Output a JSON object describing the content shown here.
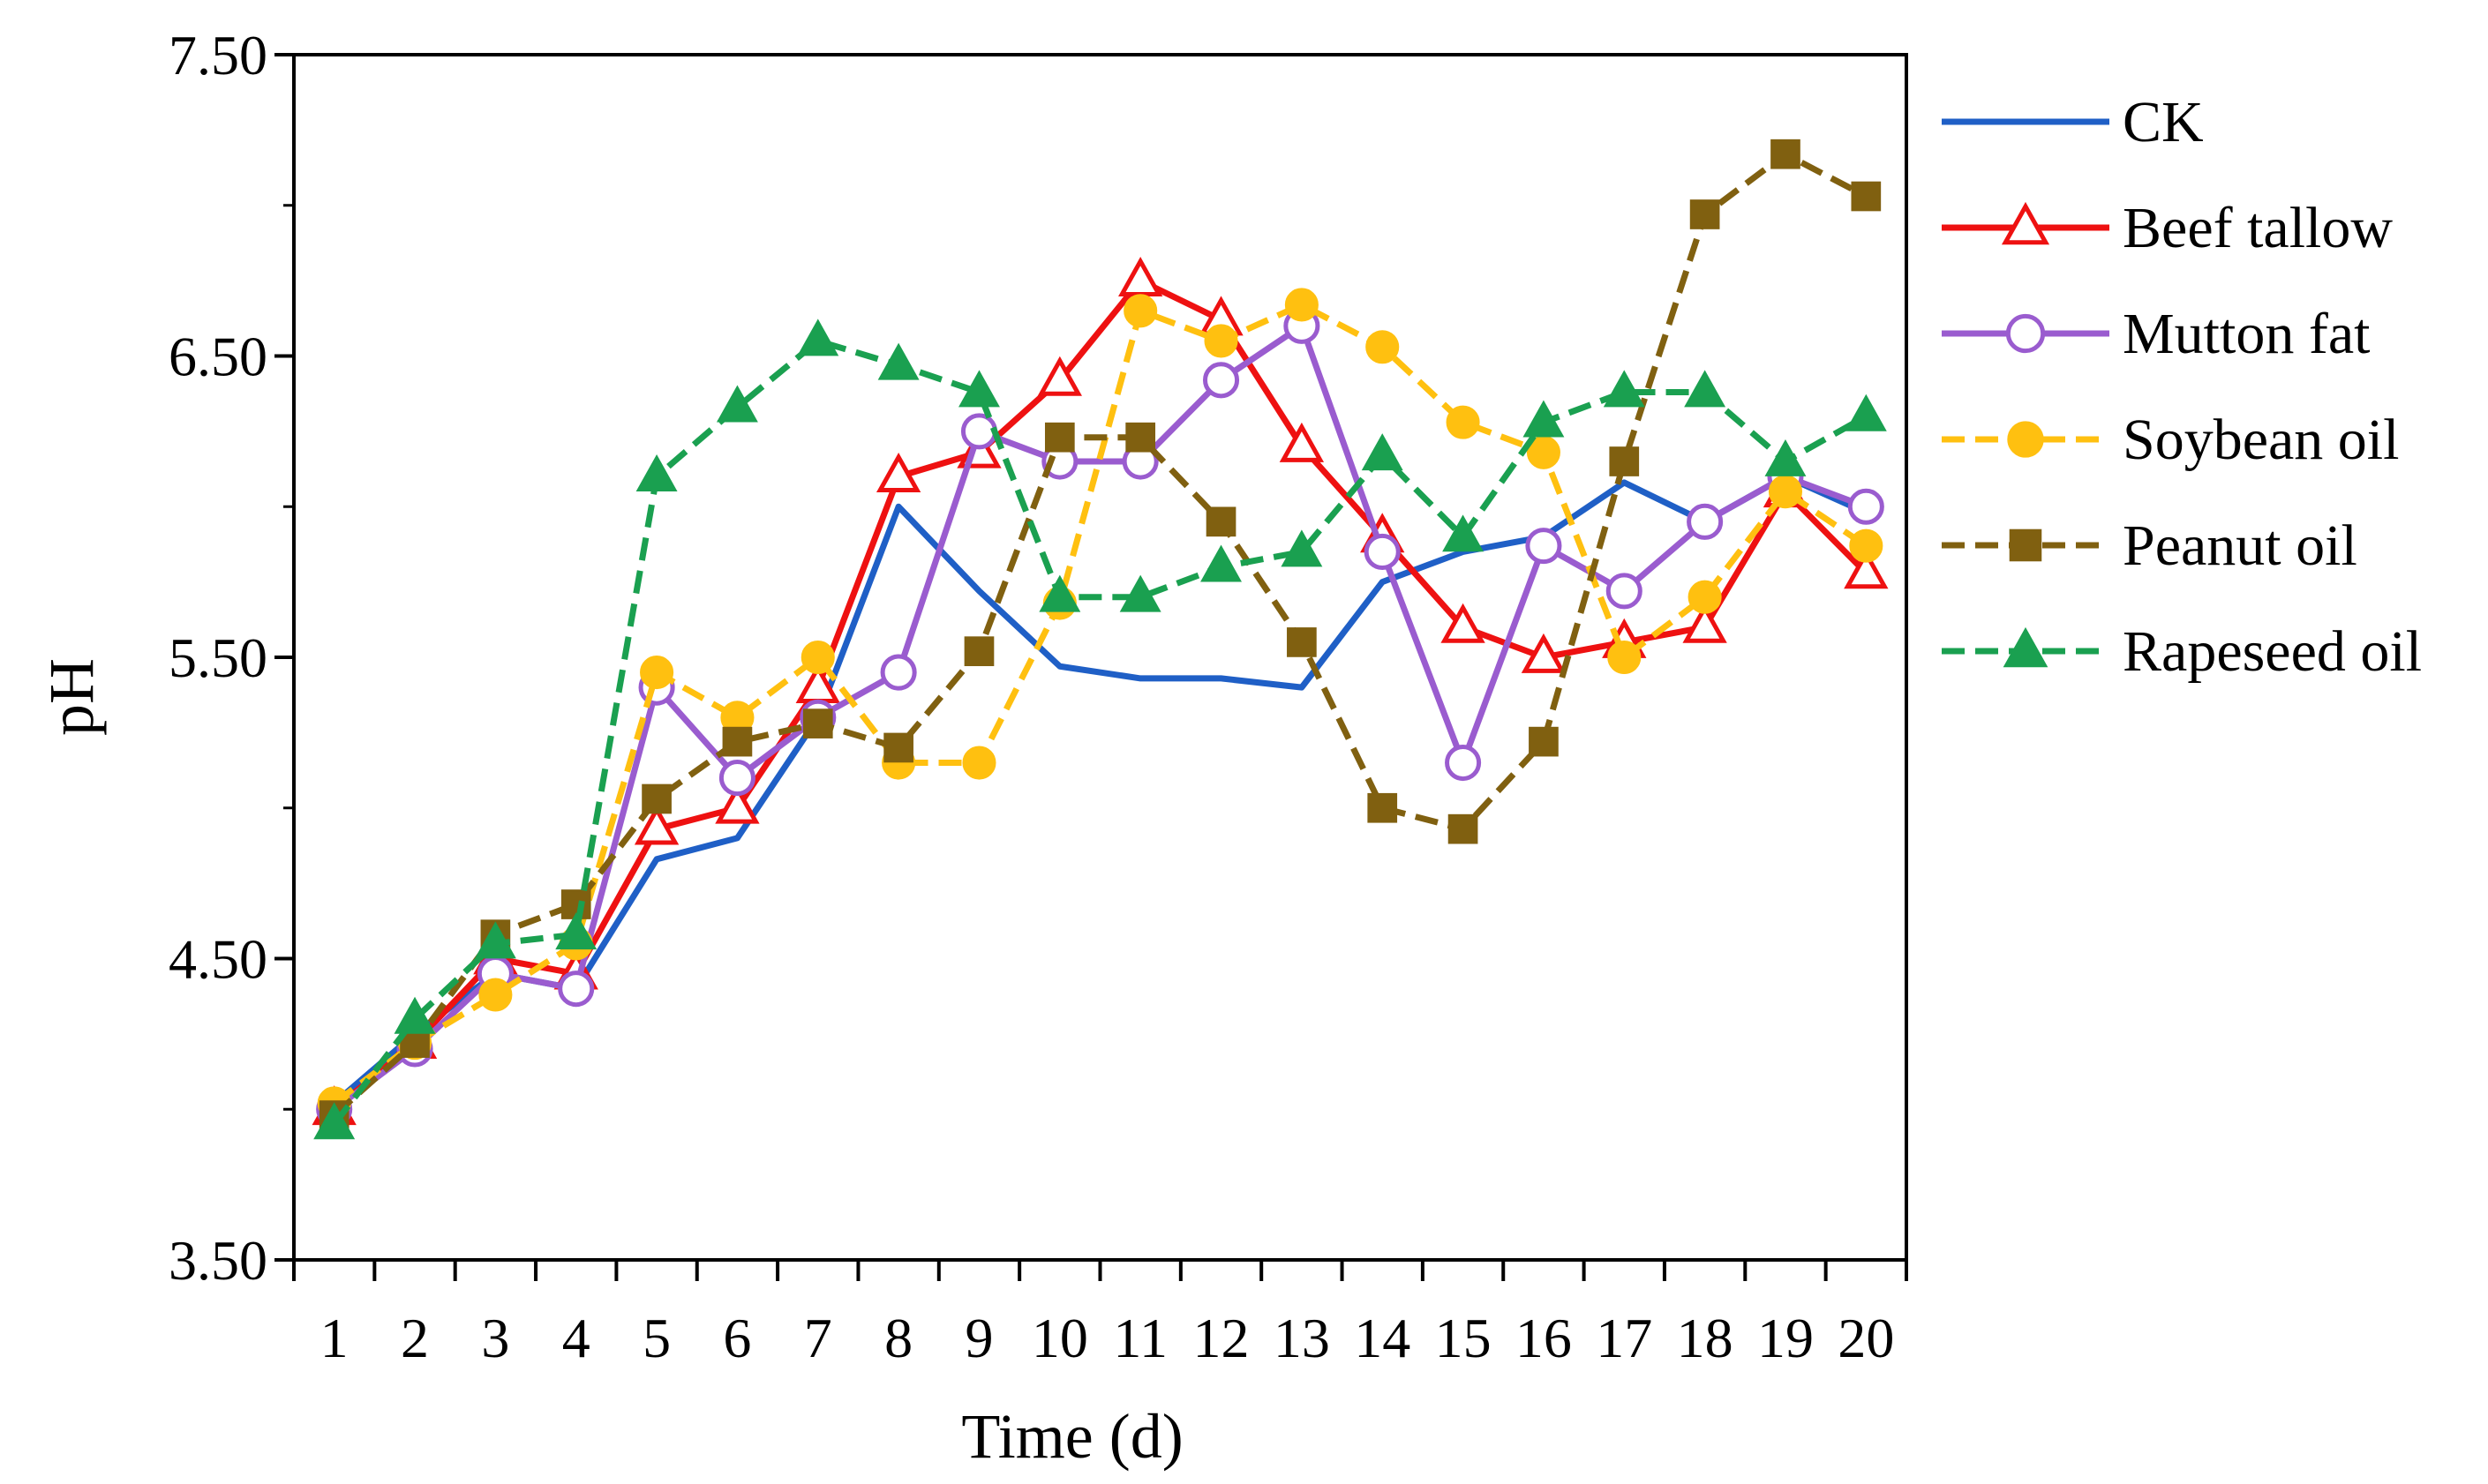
{
  "chart_data": {
    "type": "line",
    "title": "",
    "xlabel": "Time (d)",
    "ylabel": "pH",
    "xlim": [
      0.5,
      20.5
    ],
    "ylim": [
      3.5,
      7.5
    ],
    "x": [
      1,
      2,
      3,
      4,
      5,
      6,
      7,
      8,
      9,
      10,
      11,
      12,
      13,
      14,
      15,
      16,
      17,
      18,
      19,
      20
    ],
    "x_tick_labels": [
      "1",
      "2",
      "3",
      "4",
      "5",
      "6",
      "7",
      "8",
      "9",
      "10",
      "11",
      "12",
      "13",
      "14",
      "15",
      "16",
      "17",
      "18",
      "19",
      "20"
    ],
    "y_ticks": [
      3.5,
      4.5,
      5.5,
      6.5,
      7.5
    ],
    "y_tick_labels": [
      "3.50",
      "4.50",
      "5.50",
      "6.50",
      "7.50"
    ],
    "grid": false,
    "legend_position": "right",
    "series": [
      {
        "name": "CK",
        "color": "#1f5fc6",
        "marker": "none",
        "dash": "solid",
        "values": [
          4.02,
          4.25,
          4.45,
          4.4,
          4.83,
          4.9,
          5.3,
          6.0,
          5.72,
          5.47,
          5.43,
          5.43,
          5.4,
          5.75,
          5.85,
          5.9,
          6.08,
          5.95,
          6.1,
          5.98
        ]
      },
      {
        "name": "Beef tallow",
        "color": "#ee1111",
        "marker": "triangle-open",
        "dash": "solid",
        "values": [
          4.0,
          4.22,
          4.5,
          4.45,
          4.93,
          5.0,
          5.4,
          6.1,
          6.18,
          6.42,
          6.75,
          6.62,
          6.2,
          5.9,
          5.6,
          5.5,
          5.55,
          5.6,
          6.05,
          5.78
        ]
      },
      {
        "name": "Mutton fat",
        "color": "#9a5ccf",
        "marker": "circle-open",
        "dash": "solid",
        "values": [
          4.0,
          4.2,
          4.45,
          4.4,
          5.4,
          5.1,
          5.3,
          5.45,
          6.25,
          6.15,
          6.15,
          6.42,
          6.6,
          5.85,
          5.15,
          5.87,
          5.72,
          5.95,
          6.1,
          6.0
        ]
      },
      {
        "name": "Soybean oil",
        "color": "#ffc010",
        "marker": "circle-filled",
        "dash": "dashed",
        "values": [
          4.02,
          4.22,
          4.38,
          4.55,
          5.45,
          5.3,
          5.5,
          5.15,
          5.15,
          5.68,
          6.65,
          6.55,
          6.67,
          6.53,
          6.28,
          6.18,
          5.5,
          5.7,
          6.05,
          5.87
        ]
      },
      {
        "name": "Peanut oil",
        "color": "#806010",
        "marker": "square-filled",
        "dash": "dashed",
        "values": [
          3.98,
          4.22,
          4.58,
          4.68,
          5.03,
          5.22,
          5.28,
          5.2,
          5.52,
          6.23,
          6.23,
          5.95,
          5.55,
          5.0,
          4.93,
          5.22,
          6.15,
          6.97,
          7.17,
          7.03
        ]
      },
      {
        "name": "Rapeseed oil",
        "color": "#1aa050",
        "marker": "triangle-filled",
        "dash": "dashed",
        "values": [
          3.95,
          4.3,
          4.55,
          4.58,
          6.1,
          6.33,
          6.55,
          6.47,
          6.38,
          5.7,
          5.7,
          5.8,
          5.85,
          6.17,
          5.9,
          6.28,
          6.38,
          6.38,
          6.15,
          6.3
        ]
      }
    ]
  }
}
